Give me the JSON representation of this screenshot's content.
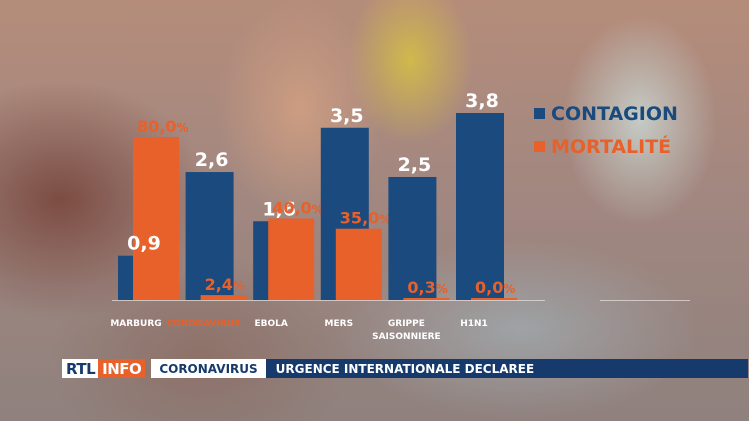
{
  "chart_data": {
    "type": "bar",
    "categories": [
      "MARBURG",
      "CORONAVIRUS",
      "EBOLA",
      "MERS",
      "GRIPPE SAISONNIERE",
      "H1N1"
    ],
    "category_lines": [
      [
        "MARBURG"
      ],
      [
        "CORONAVIRUS"
      ],
      [
        "EBOLA"
      ],
      [
        "MERS"
      ],
      [
        "GRIPPE",
        "SAISONNIERE"
      ],
      [
        "H1N1"
      ]
    ],
    "category_colors": [
      "#ffffff",
      "#e8602a",
      "#ffffff",
      "#ffffff",
      "#ffffff",
      "#ffffff"
    ],
    "series": [
      {
        "name": "CONTAGION",
        "color": "#1a4a7e",
        "values": [
          0.9,
          2.6,
          1.6,
          3.5,
          2.5,
          3.8
        ],
        "labels": [
          "0,9",
          "2,6",
          "1,6",
          "3,5",
          "2,5",
          "3,8"
        ]
      },
      {
        "name": "MORTALITÉ",
        "color": "#e8602a",
        "values": [
          80.0,
          2.4,
          40.0,
          35.0,
          0.3,
          0.0
        ],
        "labels": [
          "80,0",
          "2,4",
          "40,0",
          "35,0",
          "0,3",
          "0,0"
        ],
        "unit": "%"
      }
    ],
    "legend_placement": "top-right",
    "grid": false
  },
  "ticker": {
    "logo_left": "RTL",
    "logo_right": "INFO",
    "tag": "CORONAVIRUS",
    "headline": "URGENCE INTERNATIONALE DECLAREE"
  }
}
